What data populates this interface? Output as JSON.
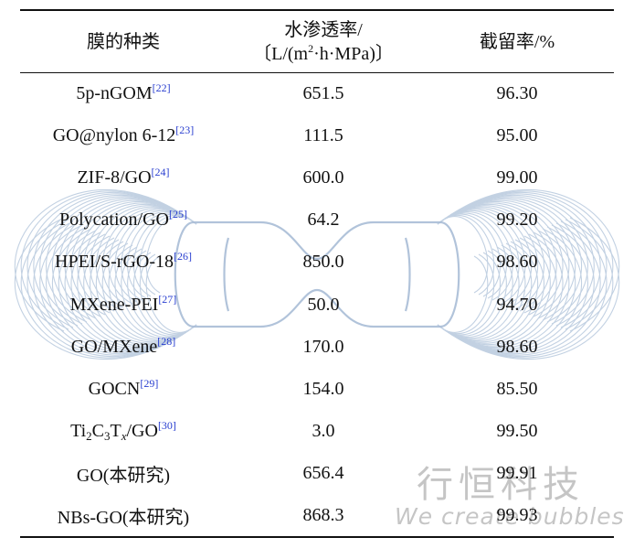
{
  "table": {
    "headers": {
      "type": "膜的种类",
      "flux_line1": "水渗透率/",
      "flux_line2_open": "〔L/(m",
      "flux_line2_sup": "2",
      "flux_line2_close": "·h·MPa)〕",
      "rejection": "截留率/%"
    },
    "rows": [
      {
        "name": "5p-nGOM",
        "ref": "[22]",
        "flux": "651.5",
        "rejection": "96.30"
      },
      {
        "name": "GO@nylon 6-12",
        "ref": "[23]",
        "flux": "111.5",
        "rejection": "95.00"
      },
      {
        "name": "ZIF-8/GO",
        "ref": "[24]",
        "flux": "600.0",
        "rejection": "99.00"
      },
      {
        "name": "Polycation/GO",
        "ref": "[25]",
        "flux": "64.2",
        "rejection": "99.20"
      },
      {
        "name": "HPEI/S-rGO-18",
        "ref": "[26]",
        "flux": "850.0",
        "rejection": "98.60"
      },
      {
        "name": "MXene-PEI",
        "ref": "[27]",
        "flux": "50.0",
        "rejection": "94.70"
      },
      {
        "name": "GO/MXene",
        "ref": "[28]",
        "flux": "170.0",
        "rejection": "98.60"
      },
      {
        "name": "GOCN",
        "ref": "[29]",
        "flux": "154.0",
        "rejection": "85.50"
      },
      {
        "name_ti": "Ti",
        "name_sub1": "2",
        "name_c": "C",
        "name_sub2": "3",
        "name_t": "T",
        "name_sub3": "x",
        "name_go": "/GO",
        "ref": "[30]",
        "flux": "3.0",
        "rejection": "99.50"
      },
      {
        "name": "GO(本研究)",
        "flux": "656.4",
        "rejection": "99.91"
      },
      {
        "name": "NBs-GO(本研究)",
        "flux": "868.3",
        "rejection": "99.93"
      }
    ]
  },
  "watermark": {
    "chinese": "行恒科技",
    "english": "We create bubbles",
    "line_color": "#b8c9de"
  }
}
